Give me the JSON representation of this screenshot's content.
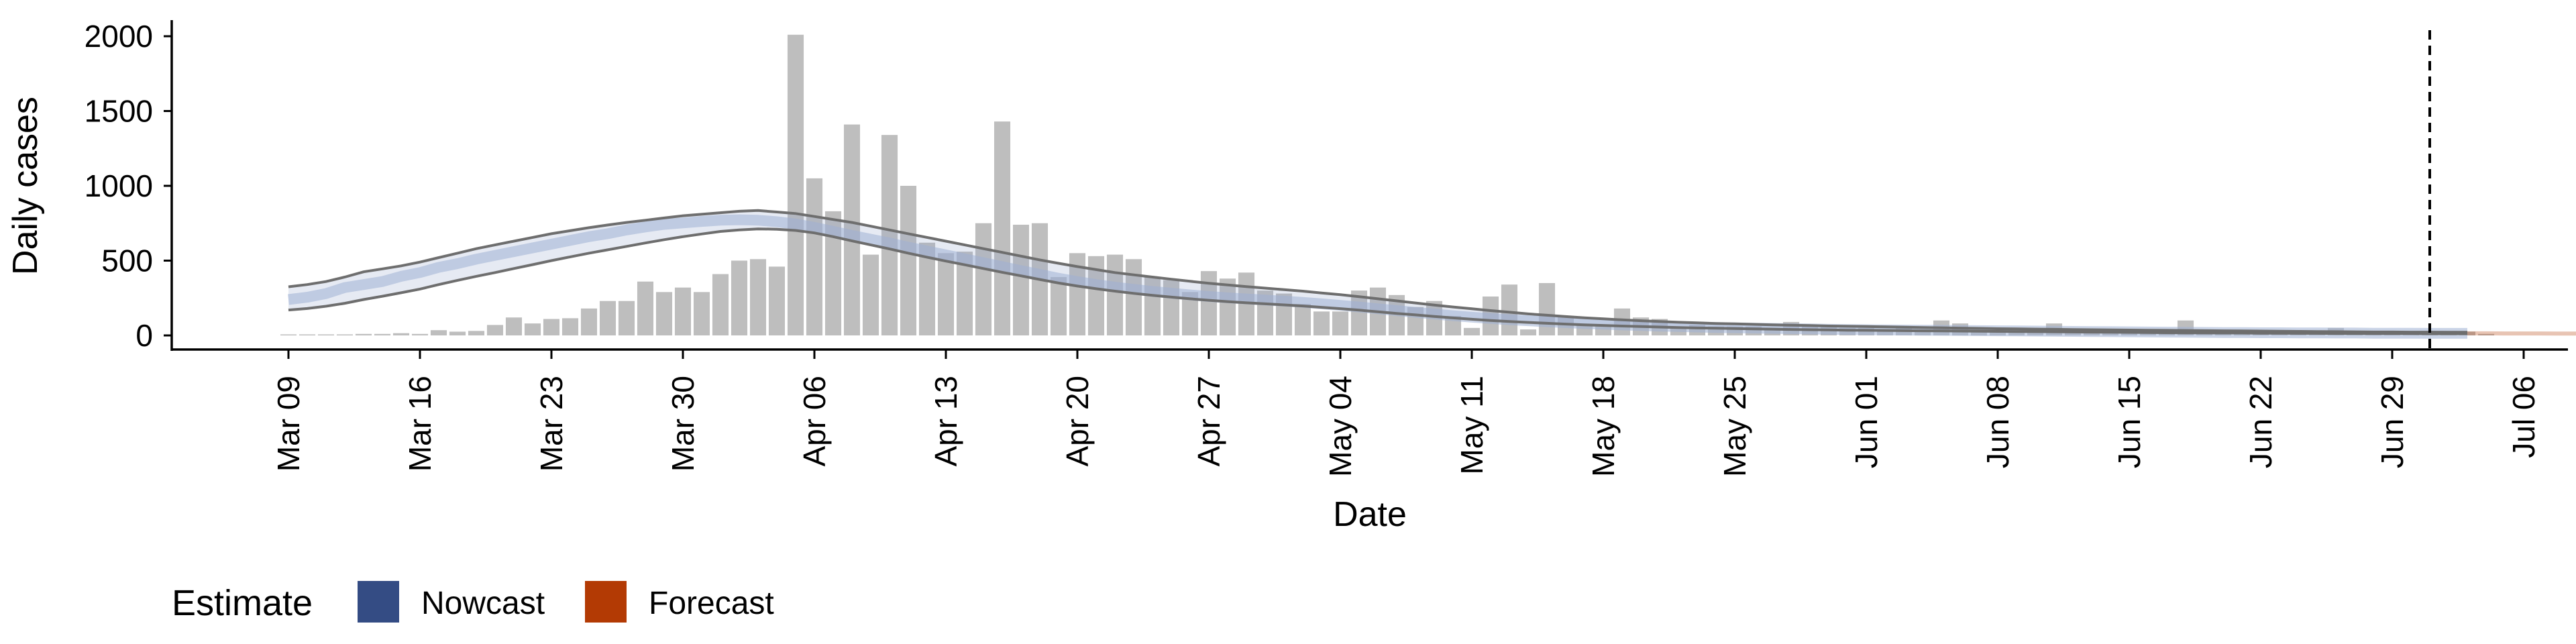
{
  "chart_data": {
    "type": "bar",
    "ylabel": "Daily cases",
    "xlabel": "Date",
    "ylim": [
      0,
      2100
    ],
    "y_ticks": [
      0,
      500,
      1000,
      1500,
      2000
    ],
    "x_tick_labels": [
      "Mar 09",
      "Mar 16",
      "Mar 23",
      "Mar 30",
      "Apr 06",
      "Apr 13",
      "Apr 20",
      "Apr 27",
      "May 04",
      "May 11",
      "May 18",
      "May 25",
      "Jun 01",
      "Jun 08",
      "Jun 15",
      "Jun 22",
      "Jun 29",
      "Jul 06"
    ],
    "x_start_date": "2020-03-09",
    "cutoff_date": "2020-07-01",
    "grid": false,
    "legend": {
      "title": "Estimate",
      "position": "bottom-left",
      "entries": [
        {
          "name": "Nowcast",
          "color": "#344c84"
        },
        {
          "name": "Forecast",
          "color": "#b33a04"
        }
      ]
    },
    "bars": {
      "color": "#bebebe",
      "values": [
        5,
        5,
        5,
        5,
        10,
        10,
        15,
        10,
        35,
        25,
        30,
        70,
        120,
        80,
        110,
        115,
        180,
        230,
        230,
        360,
        290,
        320,
        290,
        410,
        500,
        510,
        460,
        2010,
        1050,
        830,
        1410,
        540,
        1340,
        1000,
        620,
        550,
        560,
        750,
        1430,
        740,
        750,
        390,
        550,
        530,
        540,
        510,
        390,
        370,
        290,
        430,
        380,
        420,
        300,
        280,
        210,
        160,
        160,
        300,
        320,
        270,
        190,
        230,
        130,
        50,
        260,
        340,
        40,
        350,
        130,
        70,
        60,
        180,
        120,
        110,
        60,
        70,
        60,
        60,
        60,
        50,
        90,
        60,
        60,
        50,
        50,
        40,
        50,
        40,
        100,
        80,
        30,
        30,
        40,
        40,
        80,
        20,
        30,
        30,
        20,
        20,
        20,
        100,
        20,
        20,
        15,
        10,
        10,
        20,
        20,
        50,
        10,
        10,
        10,
        10,
        10,
        30,
        25,
        10
      ]
    },
    "nowcast": {
      "color": "#9fb0d4",
      "mid": [
        240,
        255,
        280,
        320,
        340,
        360,
        395,
        420,
        455,
        480,
        510,
        535,
        560,
        585,
        610,
        635,
        660,
        680,
        705,
        725,
        742,
        752,
        762,
        770,
        773,
        770,
        760,
        745,
        722,
        695,
        668,
        643,
        618,
        590,
        564,
        538,
        512,
        486,
        460,
        433,
        408,
        382,
        360,
        340,
        323,
        308,
        294,
        282,
        271,
        260,
        251,
        244,
        236,
        229,
        221,
        211,
        201,
        190,
        178,
        166,
        154,
        143,
        132,
        122,
        113,
        105,
        98,
        91,
        85,
        80,
        75,
        70,
        66,
        62,
        59,
        56,
        53,
        51,
        49,
        47,
        45,
        43,
        41,
        39,
        38,
        37,
        36,
        35,
        34,
        33,
        32,
        31,
        30,
        29,
        28,
        27,
        26,
        25,
        24,
        23,
        22,
        21,
        20,
        19,
        19,
        18,
        18,
        17,
        17,
        16,
        16,
        15,
        15,
        15,
        14,
        14,
        14
      ],
      "upper": [
        325,
        340,
        360,
        390,
        425,
        445,
        465,
        490,
        520,
        550,
        580,
        605,
        630,
        655,
        680,
        700,
        720,
        738,
        755,
        770,
        785,
        800,
        810,
        820,
        830,
        835,
        825,
        815,
        795,
        775,
        755,
        730,
        705,
        680,
        655,
        630,
        605,
        580,
        555,
        530,
        505,
        482,
        460,
        440,
        420,
        405,
        390,
        376,
        362,
        349,
        337,
        326,
        316,
        306,
        296,
        284,
        272,
        259,
        245,
        231,
        217,
        203,
        190,
        178,
        166,
        155,
        144,
        135,
        126,
        118,
        111,
        104,
        98,
        93,
        88,
        84,
        80,
        77,
        74,
        71,
        68,
        66,
        63,
        61,
        59,
        57,
        55,
        53,
        51,
        49,
        47,
        45,
        44,
        42,
        41,
        39,
        38,
        37,
        36,
        35,
        34,
        33,
        32,
        31,
        30,
        29,
        28,
        27,
        26,
        25,
        24,
        23,
        23,
        22,
        22,
        21,
        21
      ],
      "lower": [
        170,
        180,
        195,
        215,
        240,
        262,
        285,
        310,
        340,
        368,
        395,
        420,
        447,
        473,
        500,
        525,
        550,
        572,
        595,
        618,
        640,
        660,
        678,
        695,
        705,
        712,
        710,
        702,
        685,
        660,
        632,
        605,
        578,
        550,
        523,
        497,
        472,
        447,
        422,
        398,
        374,
        350,
        330,
        312,
        296,
        281,
        268,
        256,
        245,
        235,
        226,
        218,
        211,
        204,
        197,
        188,
        179,
        169,
        158,
        147,
        137,
        127,
        117,
        108,
        100,
        93,
        87,
        81,
        76,
        71,
        67,
        63,
        59,
        56,
        53,
        50,
        48,
        46,
        44,
        42,
        40,
        38,
        37,
        35,
        34,
        33,
        32,
        31,
        30,
        29,
        28,
        27,
        26,
        25,
        24,
        23,
        22,
        21,
        20,
        19,
        18,
        17,
        17,
        16,
        16,
        15,
        15,
        14,
        14,
        13,
        13,
        12,
        12,
        12,
        11,
        11,
        11
      ]
    },
    "forecast": {
      "color": "#b33a04",
      "mid": [
        14,
        14,
        13,
        13,
        13,
        12,
        12,
        12,
        12
      ]
    }
  }
}
